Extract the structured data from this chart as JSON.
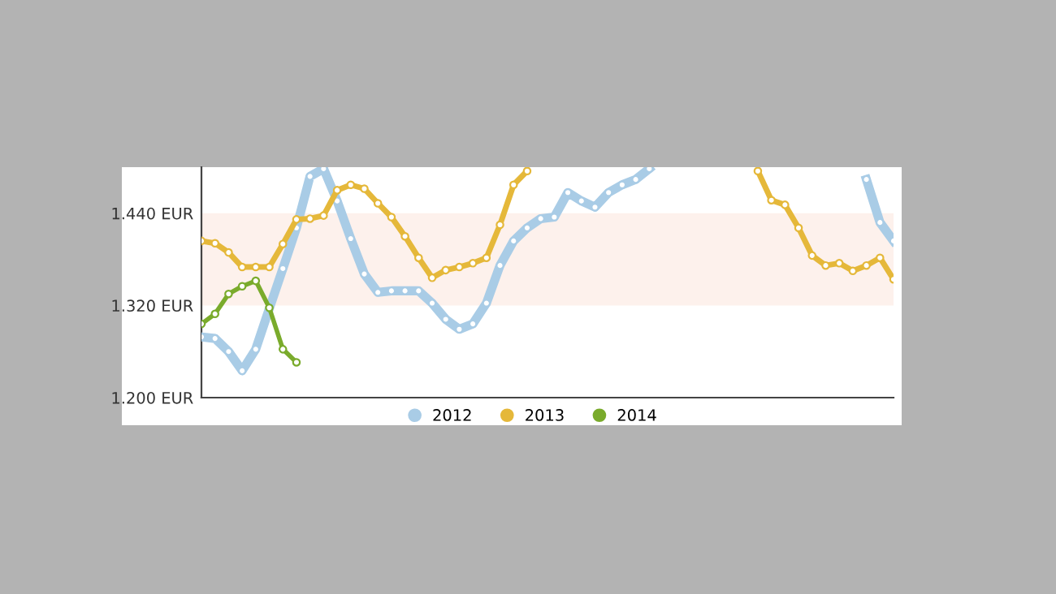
{
  "chart_data": {
    "type": "line",
    "categories": [
      null,
      null,
      null,
      null,
      null,
      null,
      null,
      null,
      null,
      null,
      null,
      null,
      null,
      null,
      null,
      null,
      null,
      null,
      null,
      null,
      null,
      null,
      null,
      null,
      null,
      null,
      null,
      null,
      null,
      null,
      null,
      null,
      null,
      null,
      null,
      null,
      null,
      null,
      null,
      null,
      null,
      null,
      null,
      null,
      null,
      null,
      null,
      null,
      null,
      null,
      null,
      null
    ],
    "series": [
      {
        "name": "2012",
        "color": "#a9cce6",
        "values": [
          1.279,
          1.277,
          1.26,
          1.235,
          1.263,
          1.316,
          1.368,
          1.421,
          1.488,
          1.498,
          1.456,
          1.407,
          1.361,
          1.337,
          1.339,
          1.339,
          1.339,
          1.323,
          1.302,
          1.289,
          1.296,
          1.323,
          1.372,
          1.404,
          1.421,
          1.433,
          1.435,
          1.467,
          1.456,
          1.448,
          1.467,
          1.477,
          1.484,
          1.498,
          null,
          null,
          null,
          null,
          null,
          null,
          null,
          null,
          null,
          null,
          null,
          null,
          null,
          null,
          null,
          null,
          null,
          null
        ]
      },
      {
        "color": "#a9cce6",
        "values": [
          null,
          null,
          null,
          null,
          null,
          null,
          null,
          null,
          null,
          null,
          null,
          null,
          null,
          null,
          null,
          null,
          null,
          null,
          null,
          null,
          null,
          null,
          null,
          null,
          null,
          null,
          null,
          null,
          null,
          null,
          null,
          null,
          null,
          null,
          null,
          null,
          null,
          null,
          null,
          null,
          null,
          null,
          null,
          null,
          null,
          null,
          null,
          null,
          null,
          1.484,
          1.428,
          1.404
        ]
      },
      {
        "name": "2013",
        "color": "#e5b83a",
        "values": [
          1.404,
          1.401,
          1.389,
          1.37,
          1.37,
          1.37,
          1.4,
          1.432,
          1.433,
          1.437,
          1.47,
          1.477,
          1.472,
          1.453,
          1.435,
          1.41,
          1.382,
          1.356,
          1.366,
          1.37,
          1.375,
          1.382,
          1.425,
          1.477,
          1.495,
          null,
          null,
          null,
          null,
          null,
          null,
          null,
          null,
          null,
          null,
          null,
          null,
          null,
          null,
          null,
          null,
          null,
          null,
          null,
          null,
          null,
          null,
          null,
          null,
          null,
          null,
          null
        ]
      },
      {
        "color": "#e5b83a",
        "values": [
          null,
          null,
          null,
          null,
          null,
          null,
          null,
          null,
          null,
          null,
          null,
          null,
          null,
          null,
          null,
          null,
          null,
          null,
          null,
          null,
          null,
          null,
          null,
          null,
          null,
          null,
          null,
          null,
          null,
          null,
          null,
          null,
          null,
          null,
          null,
          null,
          null,
          null,
          null,
          null,
          null,
          1.495,
          1.457,
          1.451,
          1.421,
          1.385,
          1.372,
          1.375,
          1.365,
          1.372,
          1.382,
          1.354
        ]
      },
      {
        "name": "2014",
        "color": "#7aab2c",
        "values": [
          1.296,
          1.309,
          1.335,
          1.345,
          1.352,
          1.317,
          1.263,
          1.246,
          null,
          null,
          null,
          null,
          null,
          null,
          null,
          null,
          null,
          null,
          null,
          null,
          null,
          null,
          null,
          null,
          null,
          null,
          null,
          null,
          null,
          null,
          null,
          null,
          null,
          null,
          null,
          null,
          null,
          null,
          null,
          null,
          null,
          null,
          null,
          null,
          null,
          null,
          null,
          null,
          null,
          null,
          null,
          null
        ]
      }
    ],
    "ylim": [
      1.2,
      1.5
    ],
    "yticks": [
      {
        "value": 1.2,
        "label": "1.200 EUR"
      },
      {
        "value": 1.32,
        "label": "1.320 EUR"
      },
      {
        "value": 1.44,
        "label": "1.440 EUR"
      }
    ],
    "tick_labels": "y",
    "bands": [
      {
        "axis": "y",
        "from": 1.32,
        "to": 1.44,
        "color": "#fdf1ec"
      }
    ],
    "marker": "circle",
    "line_style": "solid",
    "legend": "bottom",
    "grid": false
  }
}
